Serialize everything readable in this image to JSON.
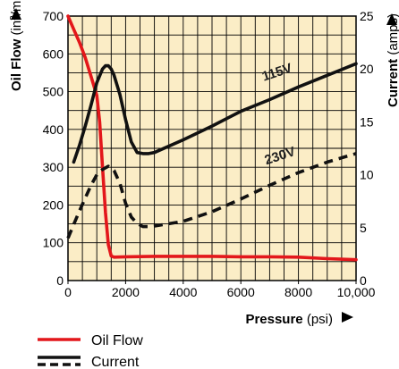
{
  "chart_data": {
    "type": "line",
    "background_color": "#fbedc6",
    "grid": true,
    "x_axis": {
      "label": "Pressure",
      "unit": "(psi)",
      "range": [
        0,
        10000
      ],
      "ticks": [
        0,
        2000,
        4000,
        6000,
        8000,
        10000
      ],
      "tick_labels": [
        "0",
        "2000",
        "4000",
        "6000",
        "8000",
        "10,000"
      ]
    },
    "y_left": {
      "label": "Oil Flow",
      "unit_prefix": "(in",
      "unit_sup": "3",
      "unit_suffix": "/min)",
      "range": [
        0,
        700
      ],
      "ticks": [
        0,
        100,
        200,
        300,
        400,
        500,
        600,
        700
      ],
      "tick_labels": [
        "0",
        "100",
        "200",
        "300",
        "400",
        "500",
        "600",
        "700"
      ]
    },
    "y_right": {
      "label": "Current",
      "unit": "(amps)",
      "range": [
        0,
        25
      ],
      "ticks": [
        0,
        5,
        10,
        15,
        20,
        25
      ],
      "tick_labels": [
        "0",
        "5",
        "10",
        "15",
        "20",
        "25"
      ]
    },
    "series": [
      {
        "name": "Oil Flow",
        "axis": "left",
        "color": "#e3171b",
        "style": "solid",
        "x": [
          0,
          200,
          400,
          600,
          800,
          1000,
          1100,
          1200,
          1300,
          1400,
          1500,
          1600,
          2000,
          3000,
          4000,
          5000,
          6000,
          7000,
          8000,
          9000,
          10000
        ],
        "values": [
          700,
          665,
          630,
          590,
          540,
          490,
          420,
          300,
          180,
          95,
          65,
          62,
          63,
          64,
          64,
          64,
          63,
          63,
          62,
          58,
          55
        ]
      },
      {
        "name": "Current",
        "axis": "right",
        "color": "#111111",
        "style": "dashed",
        "series_label": "230V",
        "x": [
          0,
          200,
          400,
          600,
          800,
          1000,
          1200,
          1400,
          1600,
          1800,
          2000,
          2200,
          2400,
          2600,
          2800,
          3000,
          4000,
          5000,
          6000,
          7000,
          8000,
          9000,
          10000
        ],
        "values": [
          4,
          5.3,
          6.6,
          7.8,
          9,
          10,
          10.5,
          10.8,
          10.4,
          9.2,
          7.3,
          6,
          5.4,
          5.1,
          5.1,
          5.15,
          5.6,
          6.5,
          7.7,
          9,
          10.2,
          11.2,
          12
        ]
      },
      {
        "name": "Current",
        "axis": "right",
        "color": "#111111",
        "style": "solid",
        "series_label": "115V",
        "x": [
          200,
          400,
          600,
          800,
          1000,
          1200,
          1300,
          1400,
          1500,
          1600,
          1800,
          2000,
          2200,
          2400,
          2600,
          2800,
          3000,
          4000,
          5000,
          6000,
          7000,
          8000,
          9000,
          10000
        ],
        "values": [
          11.2,
          12.8,
          14.6,
          16.6,
          18.7,
          20,
          20.3,
          20.3,
          20,
          19.4,
          17.6,
          15.2,
          13.1,
          12.1,
          12,
          12,
          12.1,
          13.3,
          14.6,
          16,
          17.1,
          18.3,
          19.4,
          20.5
        ]
      }
    ],
    "legend": {
      "placement": "bottom-left",
      "items": [
        {
          "label": "Oil Flow",
          "color": "#e3171b",
          "style": "solid"
        },
        {
          "label": "Current",
          "color": "#111111",
          "style": "solid-over-dashed"
        }
      ]
    }
  }
}
